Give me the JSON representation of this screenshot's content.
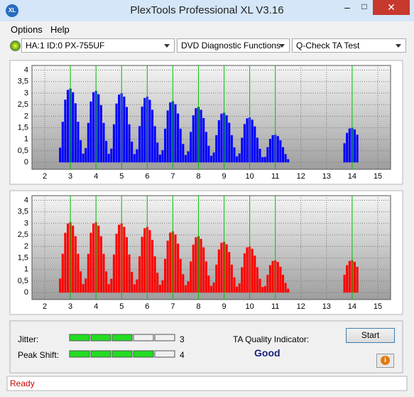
{
  "window": {
    "title": "PlexTools Professional XL V3.16"
  },
  "menu": [
    "Options",
    "Help"
  ],
  "toolbar": {
    "drive": "HA:1 ID:0  PX-755UF",
    "function": "DVD Diagnostic Functions",
    "test": "Q-Check TA Test"
  },
  "charts": [
    {
      "type": "bar",
      "color": "#0000ff",
      "marker_color": "#00c800",
      "xlim": [
        1.5,
        15.5
      ],
      "ylim": [
        -0.3,
        4.2
      ],
      "xticks": [
        2,
        3,
        4,
        5,
        6,
        7,
        8,
        9,
        10,
        11,
        12,
        13,
        14,
        15
      ],
      "yticks": [
        0,
        {
          "value": 0.5,
          "label": "0,5"
        },
        1,
        {
          "value": 1.5,
          "label": "1,5"
        },
        2,
        {
          "value": 2.5,
          "label": "2,5"
        },
        3,
        {
          "value": 3.5,
          "label": "3,5"
        },
        4
      ],
      "markers": [
        3,
        4,
        5,
        6,
        7,
        8,
        9,
        10,
        11,
        14
      ],
      "x": [
        2.6,
        2.7,
        2.8,
        2.9,
        3,
        3.1,
        3.2,
        3.3,
        3.4,
        3.5,
        3.6,
        3.7,
        3.8,
        3.9,
        4,
        4.1,
        4.2,
        4.3,
        4.4,
        4.5,
        4.6,
        4.7,
        4.8,
        4.9,
        5,
        5.1,
        5.2,
        5.3,
        5.4,
        5.5,
        5.6,
        5.7,
        5.8,
        5.9,
        6,
        6.1,
        6.2,
        6.3,
        6.4,
        6.5,
        6.6,
        6.7,
        6.8,
        6.9,
        7,
        7.1,
        7.2,
        7.3,
        7.4,
        7.5,
        7.6,
        7.7,
        7.8,
        7.9,
        8,
        8.1,
        8.2,
        8.3,
        8.4,
        8.5,
        8.6,
        8.7,
        8.8,
        8.9,
        9,
        9.1,
        9.2,
        9.3,
        9.4,
        9.5,
        9.6,
        9.7,
        9.8,
        9.9,
        10,
        10.1,
        10.2,
        10.3,
        10.4,
        10.5,
        10.6,
        10.7,
        10.8,
        10.9,
        11,
        11.1,
        11.2,
        11.3,
        11.4,
        11.5,
        13.7,
        13.8,
        13.9,
        14,
        14.1,
        14.2
      ],
      "values": [
        0.64,
        1.76,
        2.72,
        3.14,
        3.2,
        3.04,
        2.56,
        1.76,
        0.96,
        0.38,
        0.62,
        1.71,
        2.64,
        3.04,
        3.1,
        2.95,
        2.48,
        1.71,
        0.93,
        0.37,
        0.6,
        1.65,
        2.55,
        2.94,
        3.0,
        2.85,
        2.4,
        1.65,
        0.9,
        0.36,
        0.57,
        1.57,
        2.42,
        2.79,
        2.85,
        2.71,
        2.28,
        1.57,
        0.86,
        0.34,
        0.53,
        1.46,
        2.25,
        2.6,
        2.65,
        2.52,
        2.12,
        1.46,
        0.8,
        0.32,
        0.48,
        1.32,
        2.04,
        2.35,
        2.4,
        2.28,
        1.92,
        1.32,
        0.72,
        0.29,
        0.43,
        1.18,
        1.83,
        2.11,
        2.15,
        2.04,
        1.72,
        1.18,
        0.65,
        0.26,
        0.39,
        1.07,
        1.66,
        1.91,
        1.95,
        1.85,
        1.56,
        1.07,
        0.59,
        0.23,
        0.24,
        0.66,
        1.02,
        1.18,
        1.2,
        1.14,
        0.96,
        0.66,
        0.36,
        0.14,
        0.83,
        1.28,
        1.47,
        1.5,
        1.43,
        1.2
      ]
    },
    {
      "type": "bar",
      "color": "#ff0000",
      "marker_color": "#00c800",
      "xlim": [
        1.5,
        15.5
      ],
      "ylim": [
        -0.3,
        4.2
      ],
      "xticks": [
        2,
        3,
        4,
        5,
        6,
        7,
        8,
        9,
        10,
        11,
        12,
        13,
        14,
        15
      ],
      "yticks": [
        0,
        {
          "value": 0.5,
          "label": "0,5"
        },
        1,
        {
          "value": 1.5,
          "label": "1,5"
        },
        2,
        {
          "value": 2.5,
          "label": "2,5"
        },
        3,
        {
          "value": 3.5,
          "label": "3,5"
        },
        4
      ],
      "markers": [
        3,
        4,
        5,
        6,
        7,
        8,
        9,
        10,
        11,
        14
      ],
      "x": [
        2.6,
        2.7,
        2.8,
        2.9,
        3,
        3.1,
        3.2,
        3.3,
        3.4,
        3.5,
        3.6,
        3.7,
        3.8,
        3.9,
        4,
        4.1,
        4.2,
        4.3,
        4.4,
        4.5,
        4.6,
        4.7,
        4.8,
        4.9,
        5,
        5.1,
        5.2,
        5.3,
        5.4,
        5.5,
        5.6,
        5.7,
        5.8,
        5.9,
        6,
        6.1,
        6.2,
        6.3,
        6.4,
        6.5,
        6.6,
        6.7,
        6.8,
        6.9,
        7,
        7.1,
        7.2,
        7.3,
        7.4,
        7.5,
        7.6,
        7.7,
        7.8,
        7.9,
        8,
        8.1,
        8.2,
        8.3,
        8.4,
        8.5,
        8.6,
        8.7,
        8.8,
        8.9,
        9,
        9.1,
        9.2,
        9.3,
        9.4,
        9.5,
        9.6,
        9.7,
        9.8,
        9.9,
        10,
        10.1,
        10.2,
        10.3,
        10.4,
        10.5,
        10.6,
        10.7,
        10.8,
        10.9,
        11,
        11.1,
        11.2,
        11.3,
        11.4,
        11.5,
        13.7,
        13.8,
        13.9,
        14,
        14.1,
        14.2
      ],
      "values": [
        0.61,
        1.68,
        2.59,
        2.99,
        3.05,
        2.9,
        2.44,
        1.68,
        0.92,
        0.37,
        0.61,
        1.68,
        2.59,
        2.99,
        3.05,
        2.9,
        2.44,
        1.68,
        0.92,
        0.37,
        0.6,
        1.65,
        2.55,
        2.94,
        3.0,
        2.85,
        2.4,
        1.65,
        0.9,
        0.36,
        0.57,
        1.57,
        2.42,
        2.79,
        2.85,
        2.71,
        2.28,
        1.57,
        0.86,
        0.34,
        0.53,
        1.46,
        2.25,
        2.6,
        2.65,
        2.52,
        2.12,
        1.46,
        0.8,
        0.32,
        0.49,
        1.35,
        2.08,
        2.4,
        2.45,
        2.33,
        1.96,
        1.35,
        0.74,
        0.29,
        0.44,
        1.21,
        1.87,
        2.16,
        2.2,
        2.09,
        1.76,
        1.21,
        0.66,
        0.26,
        0.4,
        1.1,
        1.7,
        1.96,
        2.0,
        1.9,
        1.6,
        1.1,
        0.6,
        0.24,
        0.28,
        0.77,
        1.19,
        1.37,
        1.4,
        1.33,
        1.12,
        0.77,
        0.42,
        0.17,
        0.77,
        1.19,
        1.37,
        1.4,
        1.33,
        1.12
      ]
    }
  ],
  "results": {
    "jitter": {
      "label": "Jitter:",
      "value": 3
    },
    "peak_shift": {
      "label": "Peak Shift:",
      "value": 4
    },
    "quality_label": "TA Quality Indicator:",
    "quality": "Good",
    "start": "Start"
  },
  "status": "Ready"
}
